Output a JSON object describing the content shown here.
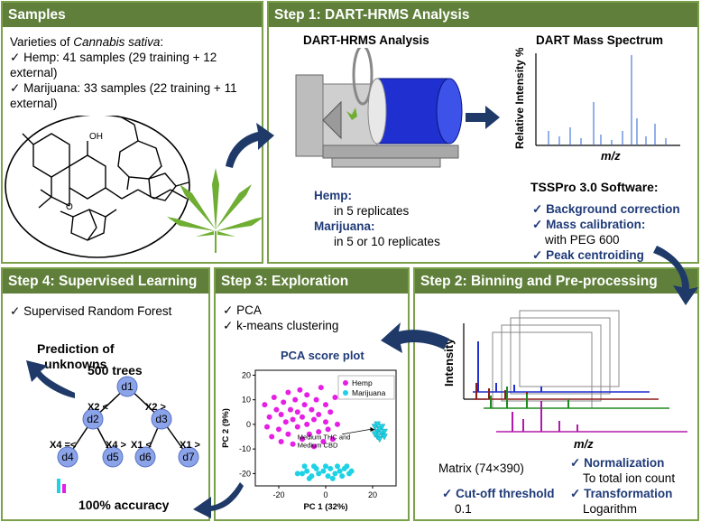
{
  "samples": {
    "header": "Samples",
    "intro_prefix": "Varieties of ",
    "intro_species": "Cannabis sativa",
    "intro_suffix": ":",
    "items": [
      "Hemp: 41 samples (29 training + 12 external)",
      "Marijuana: 33 samples (22 training + 11 external)"
    ],
    "oh_label": "OH",
    "o_label": "O"
  },
  "step1": {
    "header": "Step 1: DART-HRMS Analysis",
    "instrument_title": "DART-HRMS Analysis",
    "spectrum_title": "DART Mass Spectrum",
    "spectrum_ylabel": "Relative Intensity %",
    "spectrum_xlabel": "m/z",
    "hemp_label": "Hemp:",
    "hemp_detail": "in 5 replicates",
    "marijuana_label": "Marijuana:",
    "marijuana_detail": "in 5 or 10 replicates",
    "software_title": "TSSPro 3.0 Software:",
    "bullets": [
      {
        "title": "Background correction",
        "detail": ""
      },
      {
        "title": "Mass calibration:",
        "detail": "with PEG 600"
      },
      {
        "title": "Peak centroiding",
        "detail": ""
      }
    ]
  },
  "step2": {
    "header": "Step 2: Binning and Pre-processing",
    "ylabel": "Intensity",
    "xlabel": "m/z",
    "matrix_label": "Matrix (74×390)",
    "cutoff_title": "Cut-off threshold",
    "cutoff_value": "0.1",
    "normalization_title": "Normalization",
    "normalization_detail": "To total ion count",
    "transformation_title": "Transformation",
    "transformation_detail": "Logarithm"
  },
  "step3": {
    "header": "Step 3: Exploration",
    "items": [
      "PCA",
      "k-means clustering"
    ],
    "plot_title": "PCA score plot",
    "annotation": [
      "Medium THC and",
      "Medium CBD"
    ]
  },
  "step4": {
    "header": "Step 4: Supervised Learning",
    "item": "Supervised Random Forest",
    "prediction_label": [
      "Prediction of",
      "unknowns"
    ],
    "trees_label": "500 trees",
    "accuracy_label": "100% accuracy",
    "nodes": [
      "d1",
      "d2",
      "d3",
      "d4",
      "d5",
      "d6",
      "d7"
    ],
    "edge_labels": [
      "X2 <",
      "X2 >",
      "X4 =<",
      "X4 >",
      "X1 <",
      "X1 >"
    ]
  },
  "chart_data": {
    "type": "scatter",
    "title": "PCA score plot",
    "xlabel": "PC 1 (32%)",
    "ylabel": "PC 2 (9%)",
    "xlim": [
      -30,
      30
    ],
    "ylim": [
      -25,
      22
    ],
    "xticks": [
      -20,
      0,
      20
    ],
    "yticks": [
      -20,
      -10,
      0,
      10,
      20
    ],
    "legend_position": "top-right",
    "series": [
      {
        "name": "Hemp",
        "color": "#e61ee6",
        "marker": "circle",
        "points": [
          [
            -26,
            8
          ],
          [
            -25,
            -1
          ],
          [
            -24,
            3
          ],
          [
            -23,
            -5
          ],
          [
            -22,
            11
          ],
          [
            -21,
            6
          ],
          [
            -20,
            -2
          ],
          [
            -19,
            4
          ],
          [
            -19,
            -7
          ],
          [
            -18,
            9
          ],
          [
            -17,
            1
          ],
          [
            -16,
            13
          ],
          [
            -16,
            -4
          ],
          [
            -15,
            6
          ],
          [
            -14,
            -8
          ],
          [
            -14,
            2
          ],
          [
            -13,
            10
          ],
          [
            -12,
            -1
          ],
          [
            -12,
            5
          ],
          [
            -11,
            14
          ],
          [
            -10,
            -6
          ],
          [
            -10,
            3
          ],
          [
            -9,
            8
          ],
          [
            -8,
            0
          ],
          [
            -8,
            12
          ],
          [
            -7,
            -4
          ],
          [
            -6,
            6
          ],
          [
            -5,
            -9
          ],
          [
            -5,
            2
          ],
          [
            -4,
            10
          ],
          [
            -3,
            -3
          ],
          [
            -3,
            4
          ],
          [
            -2,
            15
          ],
          [
            -1,
            -7
          ],
          [
            0,
            1
          ],
          [
            0,
            8
          ],
          [
            1,
            -2
          ],
          [
            2,
            5
          ],
          [
            3,
            -6
          ],
          [
            4,
            11
          ],
          [
            5,
            0
          ]
        ]
      },
      {
        "name": "Marijuana",
        "color": "#1ed2e6",
        "marker": "circle",
        "points": [
          [
            -10,
            -20
          ],
          [
            -8,
            -19
          ],
          [
            -6,
            -21
          ],
          [
            -4,
            -18
          ],
          [
            -3,
            -20
          ],
          [
            -1,
            -19
          ],
          [
            1,
            -21
          ],
          [
            2,
            -18
          ],
          [
            4,
            -20
          ],
          [
            5,
            -17
          ],
          [
            6,
            -19
          ],
          [
            8,
            -18
          ],
          [
            10,
            -20
          ],
          [
            -12,
            -20
          ],
          [
            -5,
            -17
          ],
          [
            7,
            -21
          ],
          [
            3,
            -22
          ],
          [
            9,
            -17
          ],
          [
            0,
            -17
          ],
          [
            -7,
            -22
          ],
          [
            11,
            -19
          ],
          [
            -9,
            -17
          ]
        ]
      },
      {
        "name": "Medium THC and Medium CBD",
        "color": "#1ed2e6",
        "marker": "triangle",
        "points": [
          [
            21,
            -1
          ],
          [
            22,
            -3
          ],
          [
            23,
            -2
          ],
          [
            24,
            -4
          ],
          [
            22,
            -5
          ],
          [
            24,
            -1
          ],
          [
            25,
            -3
          ],
          [
            23,
            -6
          ],
          [
            21,
            -4
          ],
          [
            25,
            -5
          ],
          [
            22,
            0
          ]
        ]
      }
    ]
  }
}
